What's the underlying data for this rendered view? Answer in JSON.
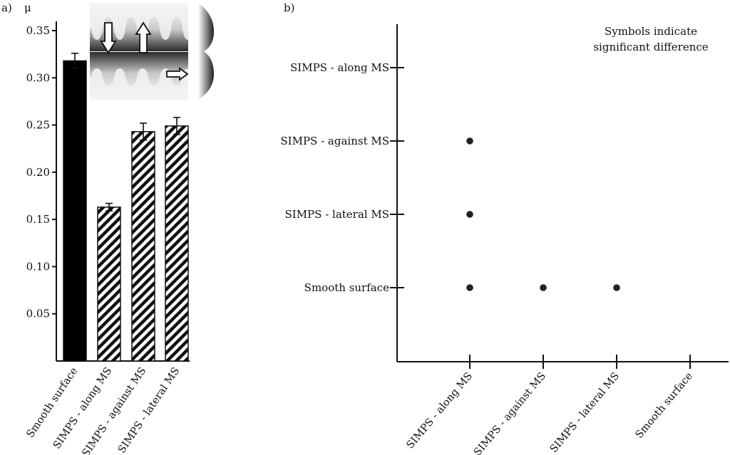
{
  "chart_data": [
    {
      "type": "bar",
      "panel_label": "a)",
      "ylabel": "μ",
      "ylim": [
        0,
        0.35
      ],
      "yticks": [
        {
          "value": 0.05,
          "label": "0.05"
        },
        {
          "value": 0.1,
          "label": "0.10"
        },
        {
          "value": 0.15,
          "label": "0.15"
        },
        {
          "value": 0.2,
          "label": "0.20"
        },
        {
          "value": 0.25,
          "label": "0.25"
        },
        {
          "value": 0.3,
          "label": "0.30"
        },
        {
          "value": 0.35,
          "label": "0.35"
        }
      ],
      "categories": [
        "Smooth surface",
        "SIMPS - along MS",
        "SIMPS - against MS",
        "SIMPS - lateral MS"
      ],
      "values": [
        0.318,
        0.163,
        0.243,
        0.249
      ],
      "errors": [
        0.008,
        0.004,
        0.009,
        0.009
      ],
      "fills": [
        "solid",
        "hatched",
        "hatched",
        "hatched"
      ],
      "inset": {
        "description_icons": [
          "down-arrow-icon",
          "up-arrow-icon",
          "right-arrow-icon"
        ]
      }
    },
    {
      "type": "scatter",
      "panel_label": "b)",
      "note_lines": [
        "Symbols indicate",
        "significant difference"
      ],
      "x_categories": [
        "SIMPS - along MS",
        "SIMPS - against MS",
        "SIMPS - lateral MS",
        "Smooth surface"
      ],
      "y_categories": [
        "Smooth surface",
        "SIMPS - lateral MS",
        "SIMPS - against MS",
        "SIMPS - along MS"
      ],
      "points": [
        {
          "x": "SIMPS - along MS",
          "y": "SIMPS - against MS"
        },
        {
          "x": "SIMPS - along MS",
          "y": "SIMPS - lateral MS"
        },
        {
          "x": "SIMPS - along MS",
          "y": "Smooth surface"
        },
        {
          "x": "SIMPS - against MS",
          "y": "Smooth surface"
        },
        {
          "x": "SIMPS - lateral MS",
          "y": "Smooth surface"
        }
      ]
    }
  ]
}
